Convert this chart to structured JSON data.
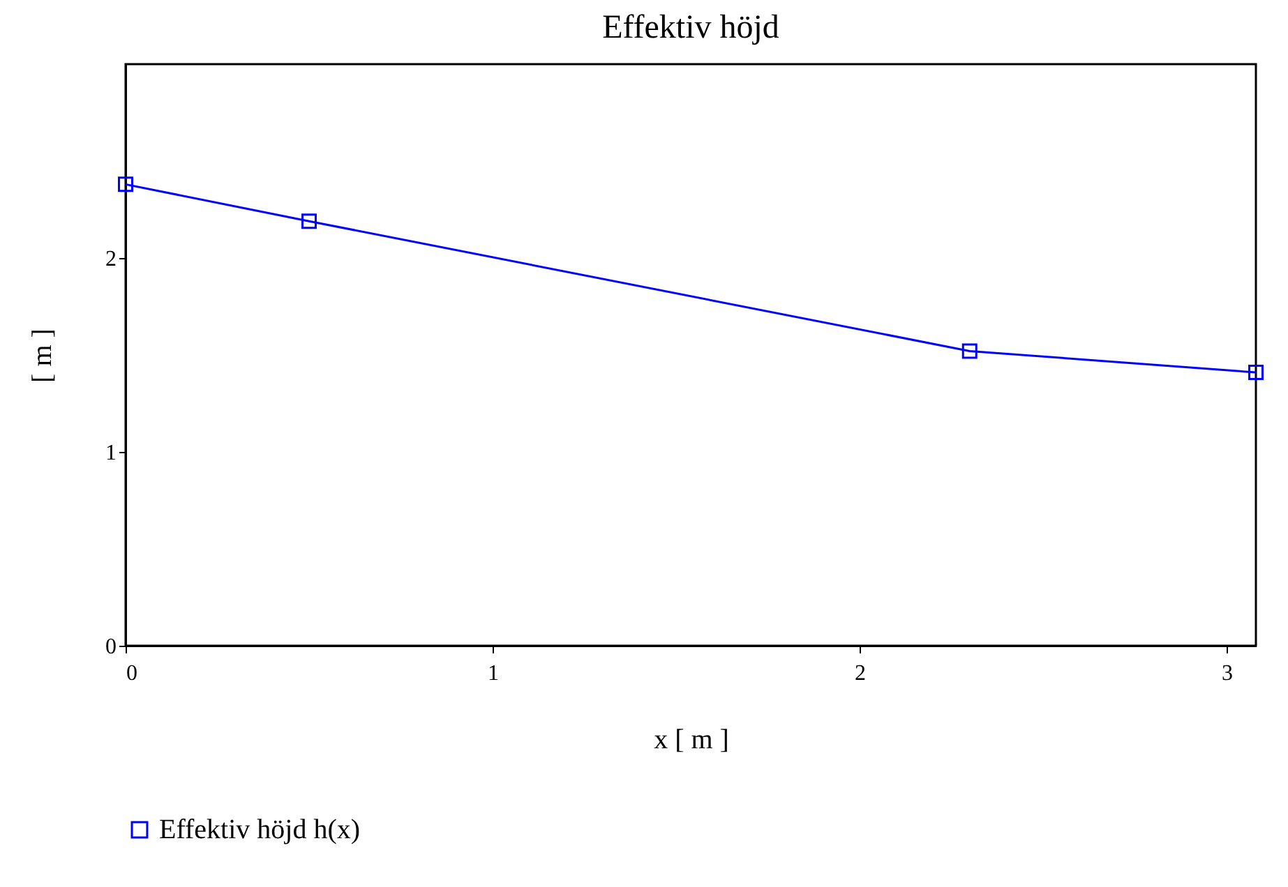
{
  "chart_data": {
    "type": "line",
    "title": "Effektiv höjd",
    "xlabel": "x   [ m ]",
    "ylabel": "[ m ]",
    "x": [
      0,
      0.5,
      2.3,
      3.08
    ],
    "series": [
      {
        "name": "Effektiv höjd h(x)",
        "color": "#0000ff",
        "values": [
          2.38,
          2.19,
          1.52,
          1.41
        ]
      }
    ],
    "xlim": [
      0,
      3.08
    ],
    "xticks": [
      0,
      1,
      2,
      3
    ],
    "ylim": [
      0,
      3
    ],
    "yticks": [
      0,
      1,
      2
    ],
    "marker": "square",
    "line_style": "solid",
    "grid": false,
    "legend": "bottom left"
  }
}
